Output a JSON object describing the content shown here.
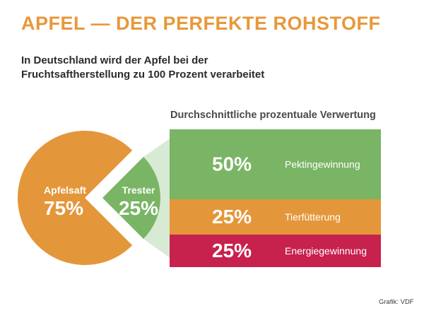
{
  "header": {
    "title": "APFEL — DER PERFEKTE ROHSTOFF",
    "subtitle_line1": "In Deutschland wird der Apfel bei der",
    "subtitle_line2": "Fruchtsaftherstellung zu 100 Prozent verarbeitet"
  },
  "breakdown_title": "Durchschnittliche prozentuale Verwertung",
  "credit": "Grafik: VDF",
  "colors": {
    "orange": "#e4963a",
    "green": "#79b565",
    "red": "#c7214e",
    "light_green": "#d7ead3"
  },
  "chart_data": [
    {
      "type": "pie",
      "slices": [
        {
          "label": "Apfelsaft",
          "value": 75,
          "display": "75%",
          "color": "#e4963a"
        },
        {
          "label": "Trester",
          "value": 25,
          "display": "25%",
          "color": "#79b565"
        }
      ]
    },
    {
      "type": "bar",
      "title": "Durchschnittliche prozentuale Verwertung",
      "categories": [
        "Pektingewinnung",
        "Tierfütterung",
        "Energiegewinnung"
      ],
      "values": [
        50,
        25,
        25
      ],
      "display": [
        "50%",
        "25%",
        "25%"
      ],
      "colors": [
        "#79b565",
        "#e4963a",
        "#c7214e"
      ]
    }
  ]
}
